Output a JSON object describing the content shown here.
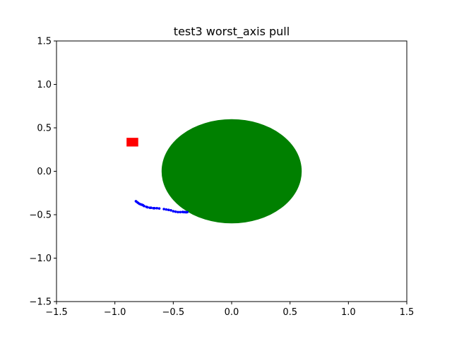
{
  "chart_data": {
    "type": "scatter",
    "title": "test3 worst_axis pull",
    "xlabel": "",
    "ylabel": "",
    "xlim": [
      -1.5,
      1.5
    ],
    "ylim": [
      -1.5,
      1.5
    ],
    "grid": false,
    "legend": "none",
    "x_ticks": [
      -1.5,
      -1.0,
      -0.5,
      0.0,
      0.5,
      1.0,
      1.5
    ],
    "x_tick_labels": [
      "−1.5",
      "−1.0",
      "−0.5",
      "0.0",
      "0.5",
      "1.0",
      "1.5"
    ],
    "y_ticks": [
      -1.5,
      -1.0,
      -0.5,
      0.0,
      0.5,
      1.0,
      1.5
    ],
    "y_tick_labels": [
      "−1.5",
      "−1.0",
      "−0.5",
      "0.0",
      "0.5",
      "1.0",
      "1.5"
    ],
    "obstacle": {
      "shape": "circle",
      "center": [
        0.0,
        0.0
      ],
      "radius": 0.6,
      "color": "#008000"
    },
    "target": {
      "shape": "square",
      "center": [
        -0.85,
        0.335
      ],
      "size": 0.1,
      "color": "#ff0000"
    },
    "trajectory": {
      "color": "#0000ff",
      "x": [
        -0.82,
        -0.81,
        -0.8,
        -0.79,
        -0.78,
        -0.77,
        -0.76,
        -0.75,
        -0.73,
        -0.72,
        -0.7,
        -0.69,
        -0.67,
        -0.66,
        -0.64,
        -0.62,
        -0.58,
        -0.56,
        -0.54,
        -0.52,
        -0.5,
        -0.48,
        -0.46,
        -0.44,
        -0.42,
        -0.41,
        -0.4,
        -0.39,
        -0.38
      ],
      "y": [
        -0.345,
        -0.355,
        -0.365,
        -0.375,
        -0.38,
        -0.385,
        -0.39,
        -0.4,
        -0.41,
        -0.415,
        -0.42,
        -0.42,
        -0.425,
        -0.425,
        -0.425,
        -0.428,
        -0.435,
        -0.44,
        -0.445,
        -0.45,
        -0.46,
        -0.465,
        -0.47,
        -0.47,
        -0.468,
        -0.47,
        -0.47,
        -0.472,
        -0.47
      ]
    }
  }
}
